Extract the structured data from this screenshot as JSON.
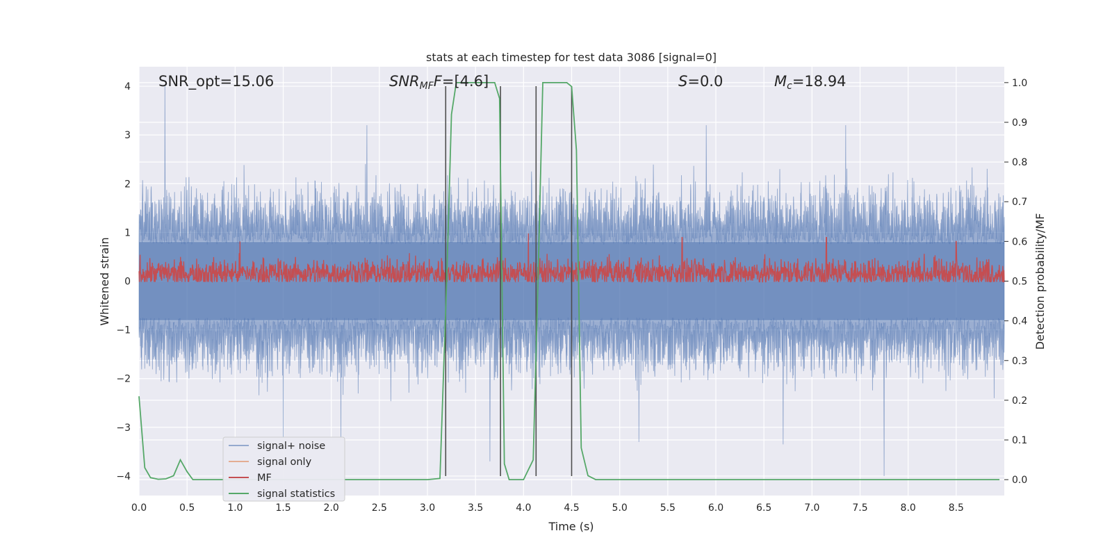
{
  "chart_data": {
    "type": "line",
    "title": "stats at each timestep for test data 3086 [signal=0]",
    "xlabel": "Time (s)",
    "ylabel_left": "Whitened strain",
    "ylabel_right": "Detection probability/MF",
    "xlim": [
      0,
      9.0
    ],
    "ylim_left": [
      -4.4,
      4.4
    ],
    "ylim_right": [
      -0.04,
      1.04
    ],
    "x_ticks": [
      "0.0",
      "0.5",
      "1.0",
      "1.5",
      "2.0",
      "2.5",
      "3.0",
      "3.5",
      "4.0",
      "4.5",
      "5.0",
      "5.5",
      "6.0",
      "6.5",
      "7.0",
      "7.5",
      "8.0",
      "8.5"
    ],
    "y_left_ticks": [
      "4",
      "3",
      "2",
      "1",
      "0",
      "−1",
      "−2",
      "−3",
      "−4"
    ],
    "y_right_ticks": [
      "1.0",
      "0.9",
      "0.8",
      "0.7",
      "0.6",
      "0.5",
      "0.4",
      "0.3",
      "0.2",
      "0.1",
      "0.0"
    ],
    "grid": true,
    "legend_position": "lower-left",
    "annotations": {
      "snr_opt": "SNR_opt=15.06",
      "snr_mf_prefix": "SNR",
      "snr_mf_sub": "MF",
      "snr_mf_value": "=[4.6]",
      "s_symbol": "S",
      "s_value": "=0.0",
      "mc_symbol": "M",
      "mc_sub": "c",
      "mc_value": "=18.94"
    },
    "series": [
      {
        "name": "signal+ noise",
        "color": "#4c72b0",
        "axis": "left",
        "kind": "noise-band",
        "band_core": [
          -0.8,
          0.8
        ],
        "typical_extent": [
          -2.0,
          2.0
        ],
        "spikes": [
          [
            0.27,
            4.0
          ],
          [
            2.37,
            3.2
          ],
          [
            5.9,
            3.2
          ],
          [
            7.35,
            3.2
          ],
          [
            3.65,
            -3.7
          ],
          [
            6.7,
            -3.35
          ],
          [
            7.75,
            -4.0
          ],
          [
            1.5,
            -3.2
          ],
          [
            2.1,
            -3.2
          ],
          [
            5.2,
            -3.3
          ]
        ]
      },
      {
        "name": "signal only",
        "color": "#dd8452",
        "axis": "left",
        "values": []
      },
      {
        "name": "MF",
        "color": "#c44e52",
        "axis": "right",
        "kind": "noise-line",
        "base": 0.52,
        "typical_extent": [
          0.5,
          0.58
        ],
        "spikes": [
          [
            4.05,
            0.62
          ],
          [
            5.65,
            0.61
          ],
          [
            7.15,
            0.61
          ],
          [
            8.5,
            0.6
          ],
          [
            1.05,
            0.6
          ]
        ]
      },
      {
        "name": "signal statistics",
        "color": "#55a868",
        "axis": "right",
        "x": [
          0.0,
          0.06,
          0.12,
          0.2,
          0.28,
          0.36,
          0.43,
          0.5,
          0.56,
          1.0,
          2.0,
          3.0,
          3.13,
          3.2,
          3.25,
          3.3,
          3.5,
          3.7,
          3.75,
          3.8,
          3.85,
          3.9,
          4.0,
          4.1,
          4.15,
          4.2,
          4.3,
          4.45,
          4.5,
          4.55,
          4.6,
          4.67,
          4.75,
          5.0,
          6.0,
          7.0,
          8.0,
          8.95
        ],
        "values": [
          0.21,
          0.03,
          0.005,
          0.001,
          0.002,
          0.01,
          0.05,
          0.02,
          0.0,
          0.0,
          0.0,
          0.0,
          0.003,
          0.5,
          0.92,
          1.0,
          1.0,
          1.0,
          0.96,
          0.04,
          0.0,
          0.0,
          0.0,
          0.05,
          0.5,
          1.0,
          1.0,
          1.0,
          0.99,
          0.83,
          0.08,
          0.01,
          0.0,
          0.0,
          0.0,
          0.0,
          0.0,
          0.0
        ]
      }
    ],
    "vertical_markers_x": [
      3.19,
      3.76,
      4.13,
      4.5
    ],
    "vertical_marker_range": [
      -4.0,
      4.0
    ]
  },
  "colors": {
    "plot_bg": "#eaeaf2",
    "grid": "#ffffff",
    "marker_line": "#4d4d4d",
    "legend_bg": "#eaeaf2",
    "legend_border": "#cccccc"
  }
}
